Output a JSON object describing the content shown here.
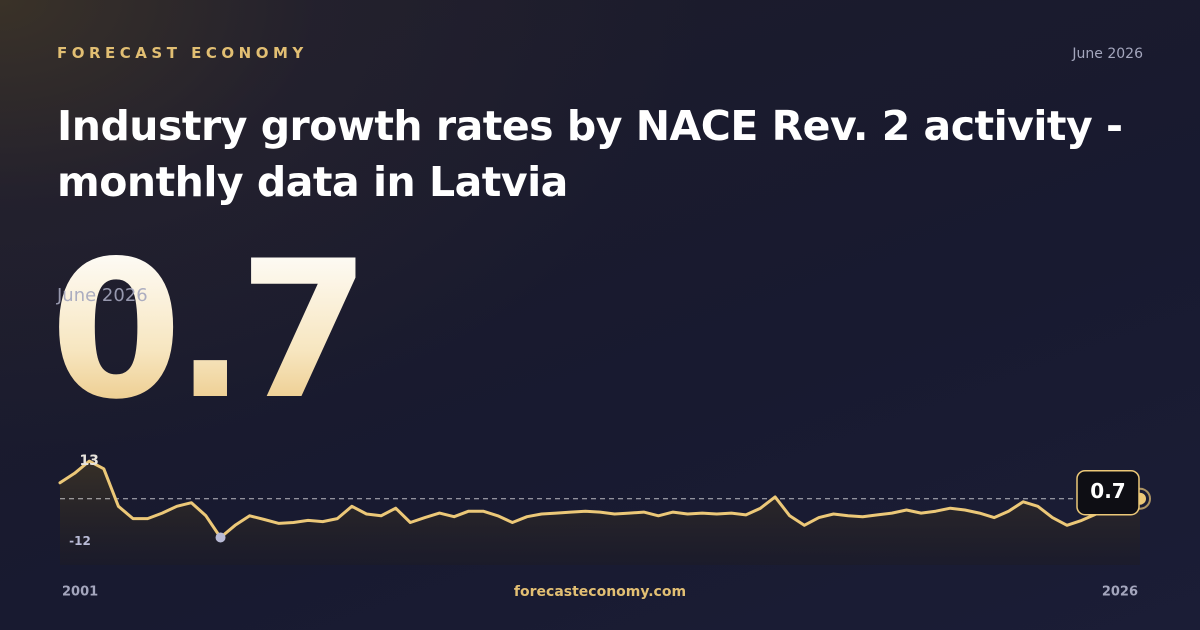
{
  "brand": "FORECAST ECONOMY",
  "date": "June 2026",
  "title": "Industry growth rates by NACE Rev. 2 activity - monthly data in Latvia",
  "site": "forecasteconomy.com",
  "chart_data": {
    "type": "line",
    "color": "#ecc878",
    "values": [
      5.9,
      9,
      13,
      10.5,
      -1.8,
      -5.8,
      -5.8,
      -4,
      -1.8,
      -0.6,
      -4.9,
      -12,
      -8,
      -4.9,
      -6.1,
      -7.4,
      -7.1,
      -6.4,
      -6.8,
      -5.8,
      -1.8,
      -4.3,
      -4.9,
      -2.4,
      -7.1,
      -5.5,
      -4,
      -5.2,
      -3.4,
      -3.4,
      -4.9,
      -7.1,
      -5.2,
      -4.3,
      -4,
      -3.7,
      -3.4,
      -3.7,
      -4.3,
      -4,
      -3.7,
      -4.9,
      -3.7,
      -4.3,
      -4,
      -4.3,
      -4,
      -4.6,
      -2.4,
      1.3,
      -4.9,
      -8,
      -5.5,
      -4.3,
      -4.9,
      -5.2,
      -4.6,
      -4,
      -3,
      -4,
      -3.4,
      -2.4,
      -3,
      -4,
      -5.5,
      -3.4,
      -0.3,
      -1.8,
      -5.5,
      -8,
      -6.4,
      -4.3,
      -3,
      -3.7,
      0.7
    ],
    "xlim": [
      2001,
      2026
    ],
    "xticks": [
      2001,
      2026
    ],
    "ylim": [
      -21,
      15
    ]
  }
}
